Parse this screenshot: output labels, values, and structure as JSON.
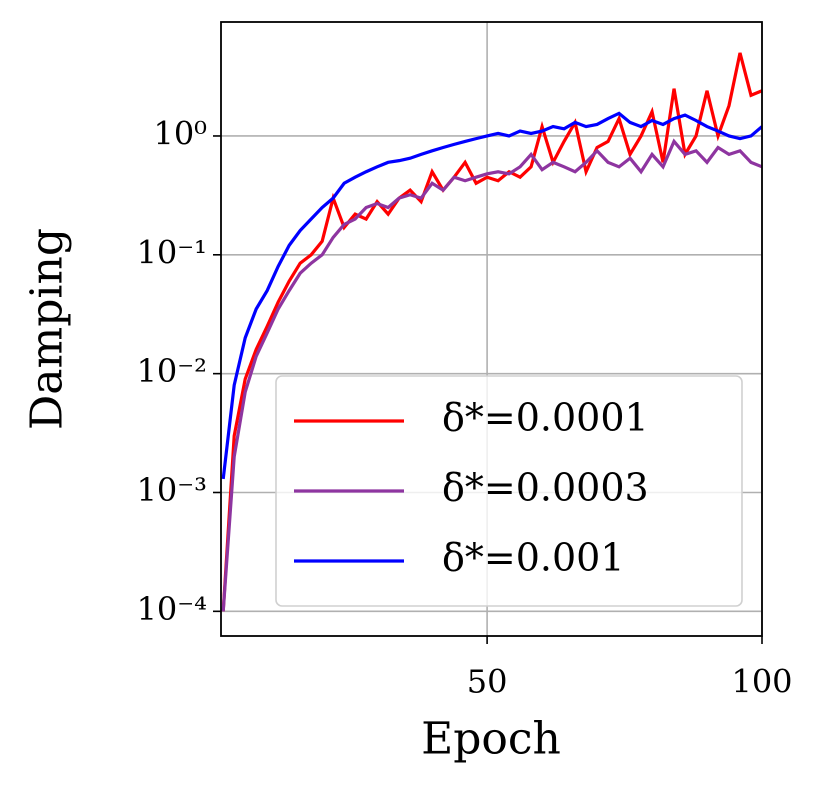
{
  "chart_data": {
    "type": "line",
    "xlabel": "Epoch",
    "ylabel": "Damping",
    "x": [
      2,
      4,
      6,
      8,
      10,
      12,
      14,
      16,
      18,
      20,
      22,
      24,
      26,
      28,
      30,
      32,
      34,
      36,
      38,
      40,
      42,
      44,
      46,
      48,
      50,
      52,
      54,
      56,
      58,
      60,
      62,
      64,
      66,
      68,
      70,
      72,
      74,
      76,
      78,
      80,
      82,
      84,
      86,
      88,
      90,
      92,
      94,
      96,
      98,
      100
    ],
    "series": [
      {
        "name": "δ*=0.0001",
        "color": "#ff0000",
        "values": [
          0.0001,
          0.003,
          0.009,
          0.016,
          0.025,
          0.04,
          0.06,
          0.085,
          0.1,
          0.13,
          0.3,
          0.17,
          0.22,
          0.2,
          0.28,
          0.22,
          0.3,
          0.35,
          0.28,
          0.5,
          0.35,
          0.45,
          0.6,
          0.4,
          0.45,
          0.42,
          0.5,
          0.45,
          0.55,
          1.2,
          0.6,
          0.9,
          1.3,
          0.5,
          0.8,
          0.9,
          1.4,
          0.7,
          1.0,
          1.6,
          0.6,
          2.5,
          0.7,
          1.0,
          2.4,
          1.0,
          1.8,
          5.0,
          2.2,
          2.4
        ]
      },
      {
        "name": "δ*=0.0003",
        "color": "#8e35a0",
        "values": [
          0.0001,
          0.002,
          0.007,
          0.014,
          0.022,
          0.035,
          0.05,
          0.07,
          0.085,
          0.1,
          0.14,
          0.18,
          0.2,
          0.25,
          0.27,
          0.25,
          0.3,
          0.32,
          0.3,
          0.4,
          0.35,
          0.45,
          0.42,
          0.45,
          0.48,
          0.5,
          0.48,
          0.55,
          0.7,
          0.52,
          0.6,
          0.55,
          0.5,
          0.6,
          0.75,
          0.6,
          0.55,
          0.65,
          0.5,
          0.7,
          0.55,
          0.9,
          0.7,
          0.75,
          0.6,
          0.8,
          0.7,
          0.75,
          0.6,
          0.55
        ]
      },
      {
        "name": "δ*=0.001",
        "color": "#0000ff",
        "values": [
          0.0013,
          0.008,
          0.02,
          0.035,
          0.05,
          0.08,
          0.12,
          0.16,
          0.2,
          0.25,
          0.3,
          0.4,
          0.45,
          0.5,
          0.55,
          0.6,
          0.62,
          0.65,
          0.7,
          0.75,
          0.8,
          0.85,
          0.9,
          0.95,
          1.0,
          1.05,
          1.0,
          1.1,
          1.05,
          1.1,
          1.2,
          1.15,
          1.3,
          1.2,
          1.25,
          1.4,
          1.55,
          1.3,
          1.2,
          1.35,
          1.25,
          1.4,
          1.5,
          1.35,
          1.2,
          1.1,
          1.0,
          0.95,
          1.0,
          1.2
        ]
      }
    ],
    "xlim": [
      1.6,
      100
    ],
    "xticks": [
      50,
      100
    ],
    "ylim": [
      6.2e-05,
      9.1
    ],
    "yscale": "log",
    "yticks": [
      {
        "value": 0.0001,
        "label": "10⁻⁴"
      },
      {
        "value": 0.001,
        "label": "10⁻³"
      },
      {
        "value": 0.01,
        "label": "10⁻²"
      },
      {
        "value": 0.1,
        "label": "10⁻¹"
      },
      {
        "value": 1,
        "label": "10⁰"
      }
    ],
    "grid": true,
    "legend": "lower right"
  }
}
